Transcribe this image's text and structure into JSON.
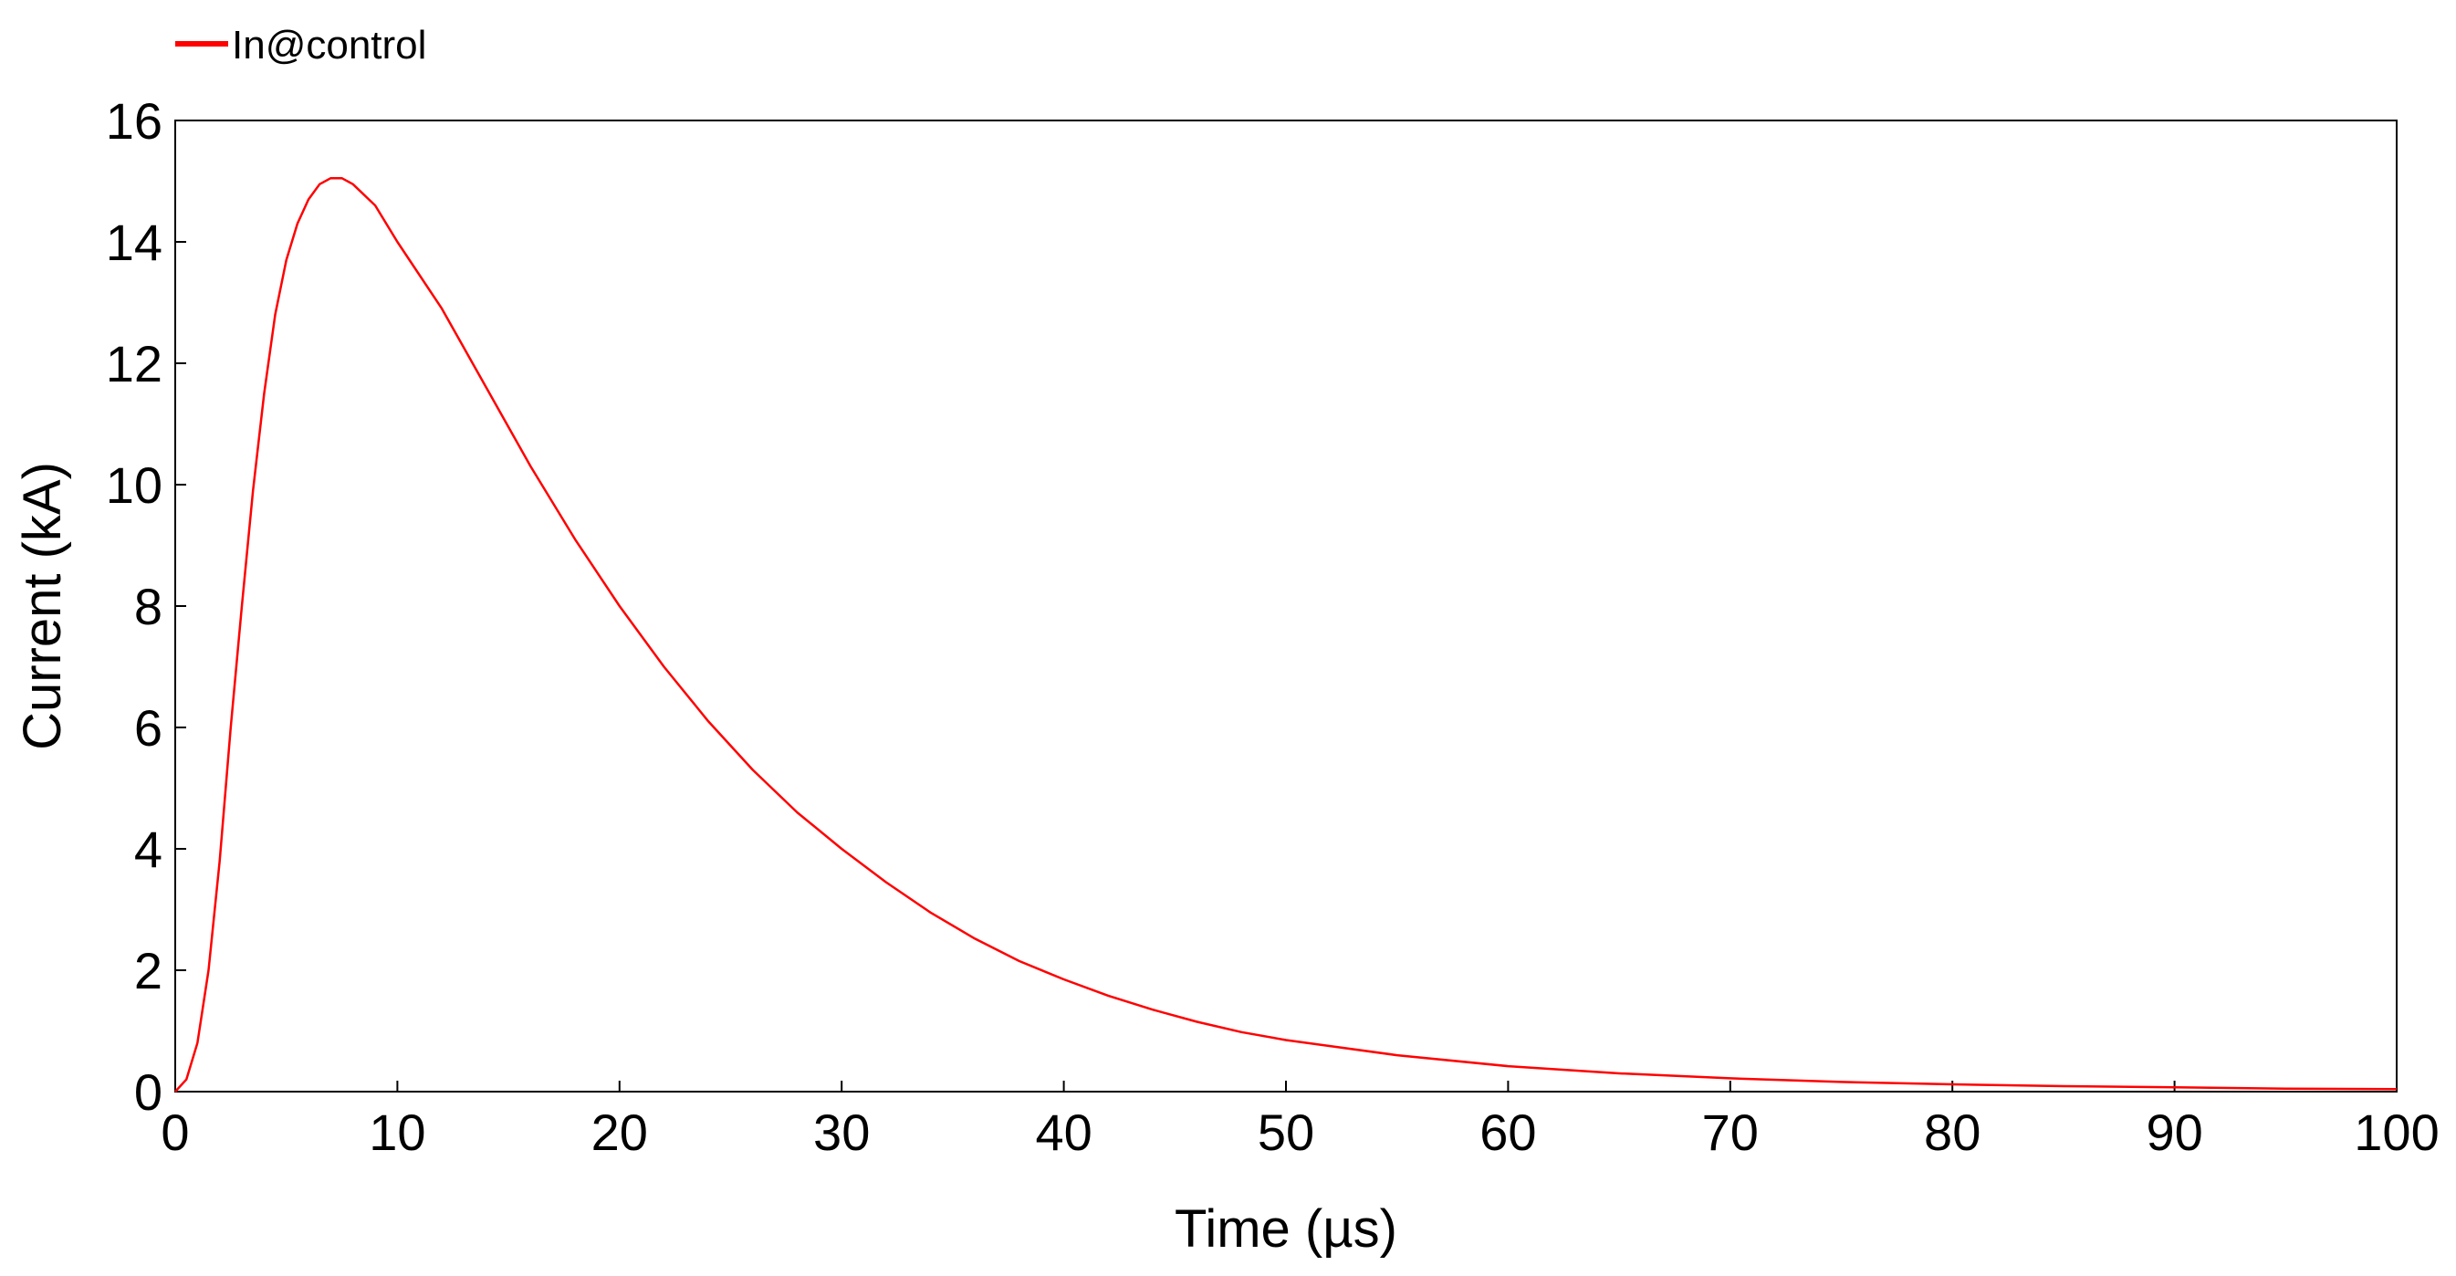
{
  "chart_data": {
    "type": "line",
    "title": "",
    "xlabel": "Time (µs)",
    "ylabel": "Current (kA)",
    "xlim": [
      0,
      100
    ],
    "ylim": [
      0,
      16
    ],
    "x_ticks": [
      0,
      10,
      20,
      30,
      40,
      50,
      60,
      70,
      80,
      90,
      100
    ],
    "x_tick_labels": [
      "0",
      "10",
      "20",
      "30",
      "40",
      "50",
      "60",
      "70",
      "80",
      "90",
      "100"
    ],
    "y_ticks": [
      0,
      2,
      4,
      6,
      8,
      10,
      12,
      14,
      16
    ],
    "y_tick_labels": [
      "0",
      "2",
      "4",
      "6",
      "8",
      "10",
      "12",
      "14",
      "16"
    ],
    "grid": false,
    "legend_position": "top-left",
    "series": [
      {
        "name": "In@control",
        "color": "#ff0000",
        "x": [
          0,
          0.5,
          1,
          1.5,
          2,
          2.5,
          3,
          3.5,
          4,
          4.5,
          5,
          5.5,
          6,
          6.5,
          7,
          7.5,
          8,
          9,
          10,
          12,
          14,
          16,
          18,
          20,
          22,
          24,
          26,
          28,
          30,
          32,
          34,
          36,
          38,
          40,
          42,
          44,
          46,
          48,
          50,
          55,
          60,
          65,
          70,
          75,
          80,
          85,
          90,
          95,
          100
        ],
        "y": [
          0,
          0.2,
          0.8,
          2.0,
          3.8,
          6.0,
          8.0,
          9.9,
          11.5,
          12.8,
          13.7,
          14.3,
          14.7,
          14.95,
          15.05,
          15.05,
          14.95,
          14.6,
          14.0,
          12.9,
          11.6,
          10.3,
          9.1,
          8.0,
          7.0,
          6.1,
          5.3,
          4.6,
          4.0,
          3.45,
          2.95,
          2.52,
          2.15,
          1.85,
          1.58,
          1.35,
          1.15,
          0.98,
          0.85,
          0.6,
          0.42,
          0.3,
          0.22,
          0.16,
          0.12,
          0.09,
          0.07,
          0.05,
          0.04
        ]
      }
    ]
  }
}
